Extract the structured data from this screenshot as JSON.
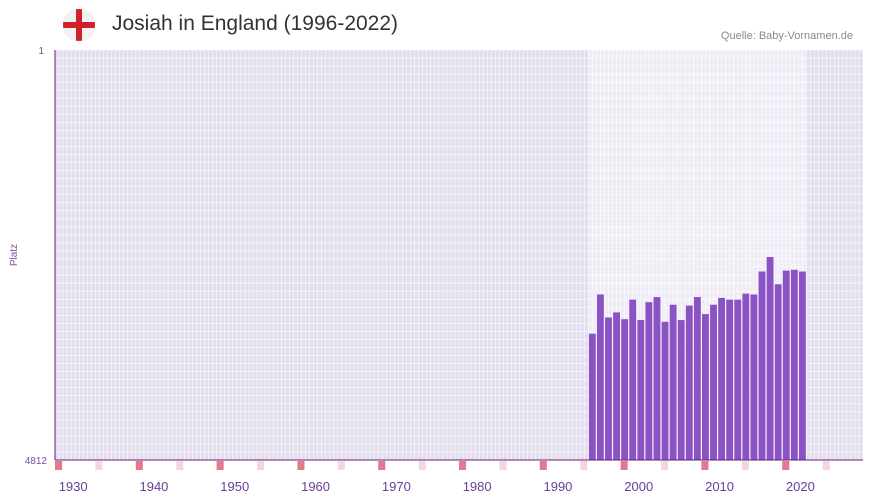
{
  "header": {
    "title": "Josiah in England (1996-2022)",
    "source": "Quelle: Baby-Vornamen.de",
    "flag_icon": "england-flag-icon"
  },
  "chart_data": {
    "type": "bar",
    "title": "Josiah in England (1996-2022)",
    "xlabel": "",
    "ylabel": "Platz",
    "y_axis_inverted": true,
    "ylim": [
      1,
      4812
    ],
    "y_ticks": [
      "1",
      "4812"
    ],
    "x_ticks": [
      "1930",
      "1940",
      "1950",
      "1960",
      "1970",
      "1980",
      "1990",
      "2000",
      "2010",
      "2020"
    ],
    "xlim": [
      1928,
      2028
    ],
    "highlight_range": [
      1994,
      2020
    ],
    "series": [
      {
        "name": "Josiah",
        "color": "#8a52c4",
        "x": [
          1994,
          1995,
          1996,
          1997,
          1998,
          1999,
          2000,
          2001,
          2002,
          2003,
          2004,
          2005,
          2006,
          2007,
          2008,
          2009,
          2010,
          2011,
          2012,
          2013,
          2014,
          2015,
          2016,
          2017,
          2018,
          2019,
          2020
        ],
        "values": [
          3330,
          2870,
          3140,
          3080,
          3160,
          2930,
          3170,
          2960,
          2900,
          3190,
          2990,
          3170,
          3000,
          2900,
          3100,
          2990,
          2910,
          2930,
          2930,
          2860,
          2870,
          2600,
          2430,
          2750,
          2590,
          2580,
          2600
        ]
      }
    ]
  },
  "colors": {
    "plot_bg": "#e2deed",
    "highlight_bg": "#efecf6",
    "grid": "#ffffff",
    "axis": "#6a1b7a",
    "marker_strong": "#e27a8d",
    "marker_light": "#f6d6dd"
  }
}
